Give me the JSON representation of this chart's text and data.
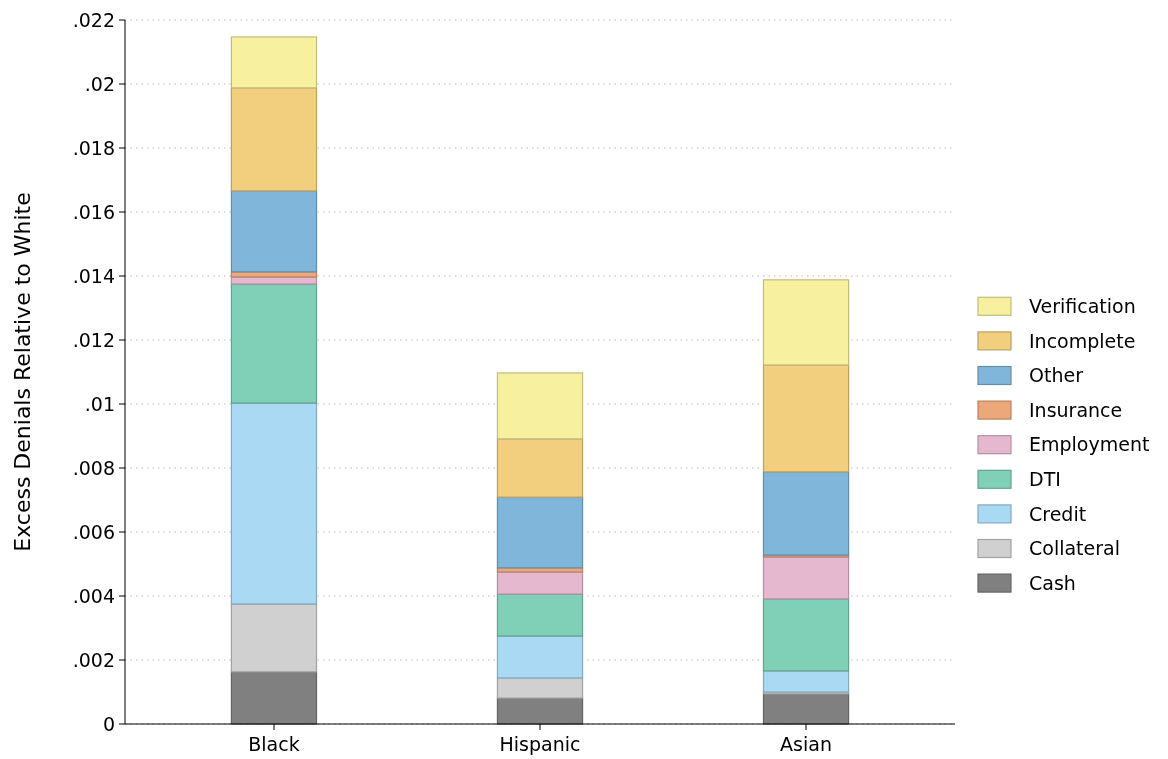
{
  "chart_data": {
    "type": "bar",
    "stacked": true,
    "ylabel": "Excess Denials Relative to White",
    "categories": [
      "Black",
      "Hispanic",
      "Asian"
    ],
    "ylim": [
      0,
      0.022
    ],
    "yticks": [
      0,
      {
        "value": 0.002,
        "label": ".002"
      },
      {
        "value": 0.004,
        "label": ".004"
      },
      {
        "value": 0.006,
        "label": ".006"
      },
      {
        "value": 0.008,
        "label": ".008"
      },
      {
        "value": 0.01,
        "label": ".01"
      },
      {
        "value": 0.012,
        "label": ".012"
      },
      {
        "value": 0.014,
        "label": ".014"
      },
      {
        "value": 0.016,
        "label": ".016"
      },
      {
        "value": 0.018,
        "label": ".018"
      },
      {
        "value": 0.02,
        "label": ".02"
      },
      {
        "value": 0.022,
        "label": ".022"
      }
    ],
    "grid": "y",
    "legend": "right",
    "series": [
      {
        "name": "Cash",
        "color": "#808080",
        "values": [
          0.00163,
          0.00081,
          0.00094
        ]
      },
      {
        "name": "Collateral",
        "color": "#d0d0d0",
        "values": [
          0.00212,
          0.00063,
          6e-05
        ]
      },
      {
        "name": "Credit",
        "color": "#a9d9f3",
        "values": [
          0.00628,
          0.00131,
          0.00066
        ]
      },
      {
        "name": "DTI",
        "color": "#80d0b8",
        "values": [
          0.00372,
          0.00131,
          0.00225
        ]
      },
      {
        "name": "Employment",
        "color": "#e5b8d0",
        "values": [
          0.00022,
          0.00069,
          0.00131
        ]
      },
      {
        "name": "Insurance",
        "color": "#eca87a",
        "values": [
          0.00016,
          0.00013,
          6e-05
        ]
      },
      {
        "name": "Other",
        "color": "#80b6d9",
        "values": [
          0.00253,
          0.00221,
          0.0026
        ]
      },
      {
        "name": "Incomplete",
        "color": "#f2cf7f",
        "values": [
          0.00322,
          0.00182,
          0.00334
        ]
      },
      {
        "name": "Verification",
        "color": "#f7f19f",
        "values": [
          0.00159,
          0.00206,
          0.00266
        ]
      }
    ]
  }
}
